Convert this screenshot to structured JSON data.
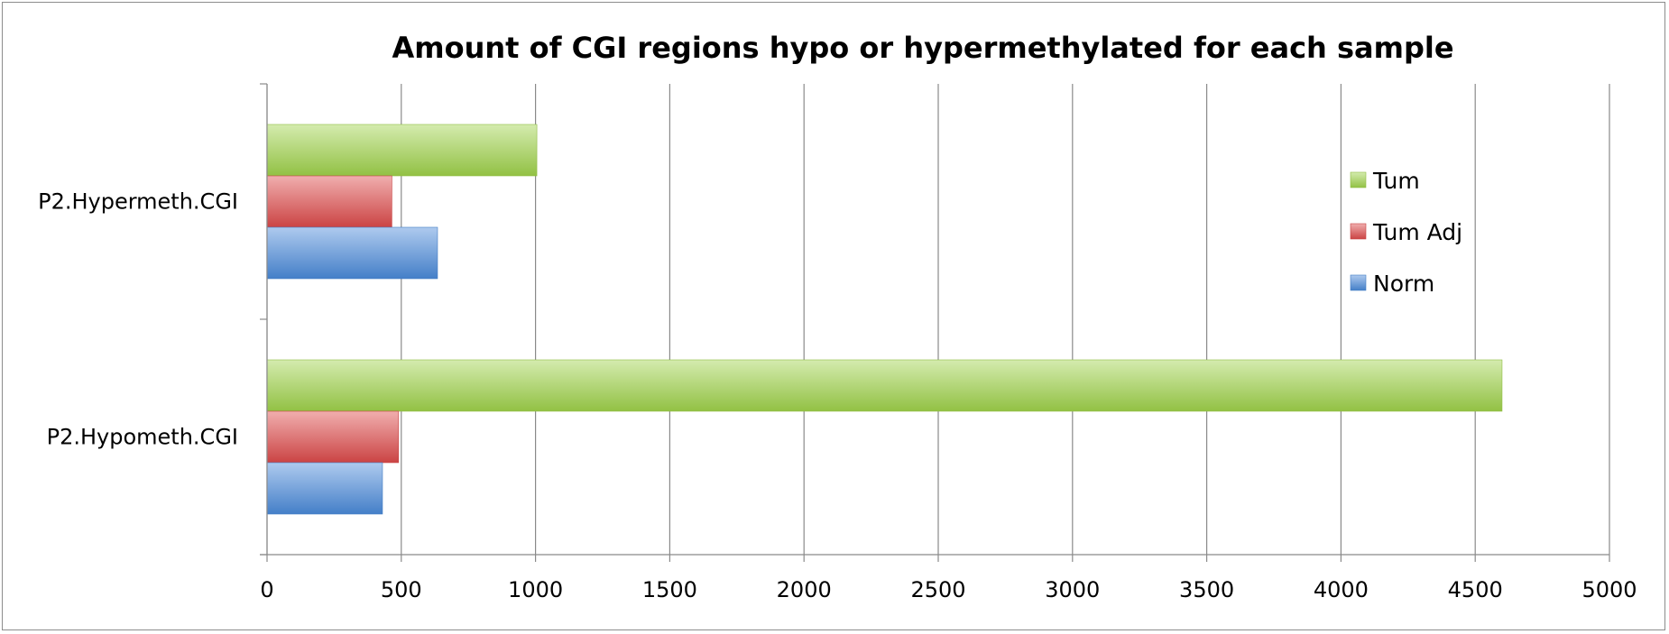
{
  "chart_data": {
    "type": "bar",
    "orientation": "horizontal",
    "title": "Amount of CGI regions hypo or hypermethylated for each sample",
    "xlabel": "",
    "ylabel": "",
    "categories": [
      "P2.Hypermeth.CGI",
      "P2.Hypometh.CGI"
    ],
    "series": [
      {
        "name": "Tum",
        "color": "#9fd24a",
        "values": [
          1005,
          4600
        ]
      },
      {
        "name": "Tum Adj",
        "color": "#dd4a4a",
        "values": [
          465,
          490
        ]
      },
      {
        "name": "Norm",
        "color": "#4a8ad9",
        "values": [
          635,
          430
        ]
      }
    ],
    "xlim": [
      0,
      5000
    ],
    "xticks": [
      0,
      500,
      1000,
      1500,
      2000,
      2500,
      3000,
      3500,
      4000,
      4500,
      5000
    ],
    "grid": "vertical",
    "legend_position": "right"
  }
}
